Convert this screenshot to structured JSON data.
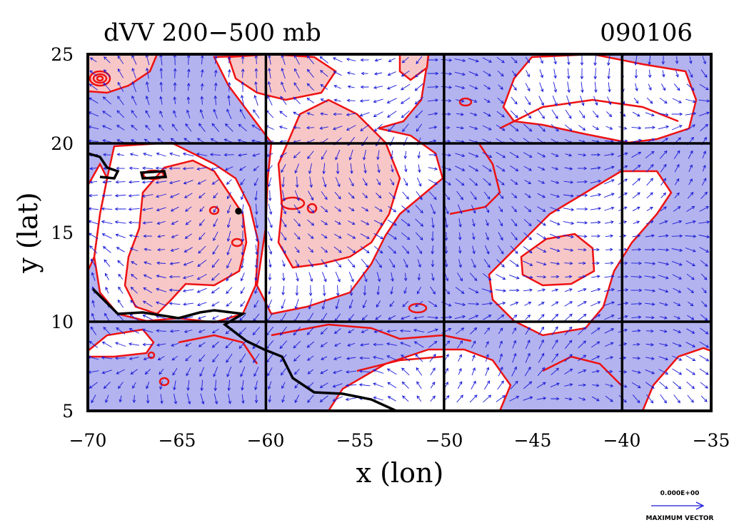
{
  "chart_data": {
    "type": "contour",
    "title": "dVV 200−500 mb",
    "date_label": "090106",
    "xlabel": "x (lon)",
    "ylabel": "y (lat)",
    "xlim": [
      -70,
      -35
    ],
    "ylim": [
      5,
      25
    ],
    "x_ticks": [
      -70,
      -65,
      -60,
      -55,
      -50,
      -45,
      -40,
      -35
    ],
    "y_ticks": [
      5,
      10,
      15,
      20,
      25
    ],
    "x_tick_labels": [
      "−70",
      "−65",
      "−60",
      "−55",
      "−50",
      "−45",
      "−40",
      "−35"
    ],
    "y_tick_labels": [
      "5",
      "10",
      "15",
      "20",
      "25"
    ],
    "grid": true,
    "grid_lines_lon": [
      -60,
      -50,
      -40
    ],
    "grid_lines_lat": [
      10,
      20
    ],
    "colors": {
      "negative_fill": "#b3b3ef",
      "positive_fill": "#f7c7c7",
      "contour": "#ee1111",
      "vector": "#1a1ad8",
      "coastline": "#000000"
    },
    "reference_vector": {
      "value_label": "0.000E+00",
      "caption": "MAXIMUM VECTOR"
    }
  }
}
